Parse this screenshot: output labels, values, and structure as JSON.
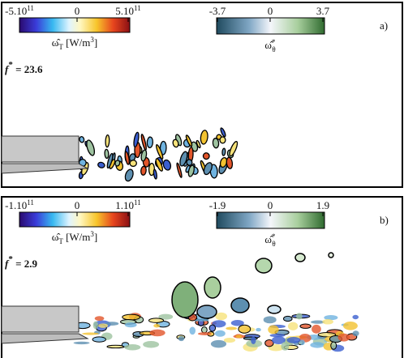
{
  "panels": [
    {
      "tag": "a)",
      "f_label": {
        "base": "f",
        "sup": "*",
        "rest": " = 23.6"
      },
      "colorbar_T": {
        "ticks": [
          {
            "mant": "-5.10",
            "exp": "11"
          },
          "0",
          {
            "mant": "5.10",
            "exp": "11"
          }
        ],
        "label": {
          "symbol": "ω̂",
          "sub": "T",
          "unit": " [W/m",
          "unit_sup": "3",
          "close": "]"
        }
      },
      "colorbar_theta": {
        "ticks": [
          "-3.7",
          "0",
          "3.7"
        ],
        "label": {
          "symbol": "ω̂",
          "sub": "θ",
          "sup": "*"
        }
      }
    },
    {
      "tag": "b)",
      "f_label": {
        "base": "f",
        "sup": "*",
        "rest": " = 2.9"
      },
      "colorbar_T": {
        "ticks": [
          {
            "mant": "-1.10",
            "exp": "11"
          },
          "0",
          {
            "mant": "1.10",
            "exp": "11"
          }
        ],
        "label": {
          "symbol": "ω̂",
          "sub": "T",
          "unit": " [W/m",
          "unit_sup": "3",
          "close": "]"
        }
      },
      "colorbar_theta": {
        "ticks": [
          "-1.9",
          "0",
          "1.9"
        ],
        "label": {
          "symbol": "ω̂",
          "sub": "θ",
          "sup": "*"
        }
      }
    }
  ]
}
